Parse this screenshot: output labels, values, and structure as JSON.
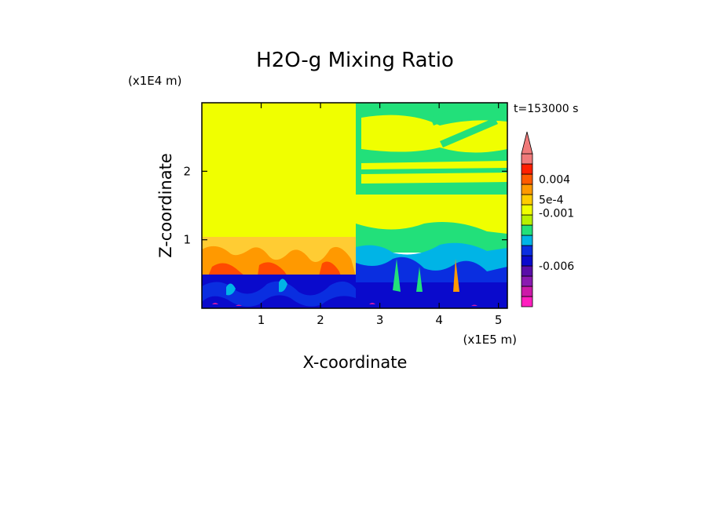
{
  "chart_data": {
    "type": "heatmap",
    "title": "H2O-g Mixing Ratio",
    "xlabel": "X-coordinate",
    "ylabel": "Z-coordinate",
    "x_unit": "(x1E5 m)",
    "y_unit": "(x1E4 m)",
    "time_label": "t=153000 s",
    "xlim": [
      0,
      5.15
    ],
    "ylim": [
      0,
      3.0
    ],
    "x_ticks": [
      1,
      2,
      3,
      4,
      5
    ],
    "y_ticks": [
      1,
      2
    ],
    "colorbar": {
      "colors": [
        "#ff1fbf",
        "#cc1aa8",
        "#8a1ab0",
        "#5a0fa8",
        "#0a0acc",
        "#0a2ee0",
        "#00b4e6",
        "#22e07a",
        "#b8f000",
        "#f0ff00",
        "#ffcc00",
        "#ff9900",
        "#ff5a00",
        "#ff2000",
        "#f07a7a"
      ],
      "labels": [
        {
          "text": "0.004",
          "index": 12.5
        },
        {
          "text": "5e-4",
          "index": 10.5
        },
        {
          "text": "-0.001",
          "index": 9.2
        },
        {
          "text": "-0.006",
          "index": 4.0
        }
      ],
      "extend_max": true
    },
    "regions": [
      {
        "x": [
          0,
          2.55
        ],
        "z": [
          0,
          0.5
        ],
        "level": "blue"
      },
      {
        "x": [
          0,
          2.55
        ],
        "z": [
          0.5,
          1.05
        ],
        "level": "orange"
      },
      {
        "x": [
          0,
          2.55
        ],
        "z": [
          1.05,
          3.0
        ],
        "level": "yellow"
      },
      {
        "x": [
          2.55,
          5.15
        ],
        "z": [
          0,
          0.5
        ],
        "level": "blue"
      },
      {
        "x": [
          2.55,
          5.15
        ],
        "z": [
          0.5,
          0.95
        ],
        "level": "cyan"
      },
      {
        "x": [
          2.55,
          5.15
        ],
        "z": [
          0.95,
          3.0
        ],
        "level": "yellow-green"
      }
    ]
  }
}
